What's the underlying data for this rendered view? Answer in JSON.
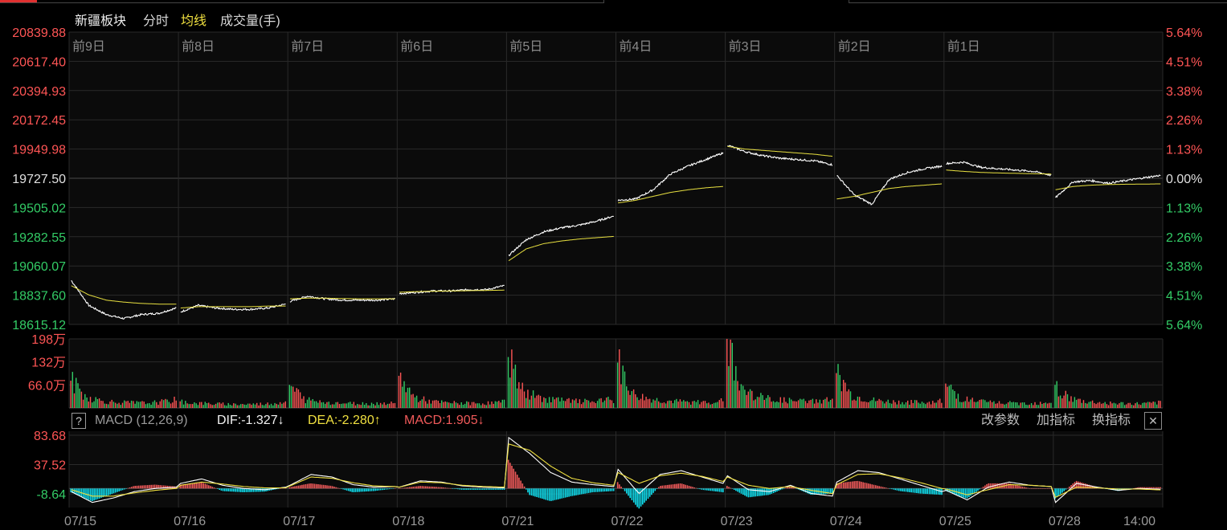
{
  "header": {
    "sector": "新疆板块",
    "tab_intraday": "分时",
    "tab_avg": "均线",
    "tab_volume": "成交量(手)"
  },
  "colors": {
    "up": "#ff5555",
    "down": "#33cc66",
    "neutral": "#e0e0e0",
    "price_line": "#ffffff",
    "avg_line": "#e8e040",
    "dif_line": "#ffffff",
    "dea_line": "#f0e040",
    "macd_pos": "#f05a5a",
    "macd_neg": "#10e0f0",
    "grid": "#2a2a2a",
    "grid_mid": "#484848"
  },
  "macd_header": {
    "help": "?",
    "title": "MACD (12,26,9)",
    "dif": "DIF:-1.327↓",
    "dea": "DEA:-2.280↑",
    "macd": "MACD:1.905↓",
    "btn_params": "改参数",
    "btn_add": "加指标",
    "btn_switch": "换指标",
    "close_icon": "close-icon"
  },
  "chart_data": [
    {
      "type": "line",
      "title": "",
      "day_labels": [
        "前9日",
        "前8日",
        "前7日",
        "前6日",
        "前5日",
        "前4日",
        "前3日",
        "前2日",
        "前1日",
        ""
      ],
      "x": [
        "07/15",
        "07/16",
        "07/17",
        "07/18",
        "07/21",
        "07/22",
        "07/23",
        "07/24",
        "07/25",
        "07/28"
      ],
      "price_ticks_left": [
        "20839.88",
        "20617.40",
        "20394.93",
        "20172.45",
        "19949.98",
        "19727.50",
        "19505.02",
        "19282.55",
        "19060.07",
        "18837.60",
        "18615.12"
      ],
      "pct_ticks_right": [
        "5.64%",
        "4.51%",
        "3.38%",
        "2.26%",
        "1.13%",
        "0.00%",
        "1.13%",
        "2.26%",
        "3.38%",
        "4.51%",
        "5.64%"
      ],
      "ylim": [
        18615.12,
        20839.88
      ],
      "prev_close": 19727.5,
      "series": [
        {
          "values_per_day": [
            [
              18950,
              18760,
              18690,
              18660,
              18690,
              18700,
              18740
            ],
            [
              18710,
              18760,
              18740,
              18730,
              18730,
              18740,
              18770
            ],
            [
              18790,
              18830,
              18810,
              18800,
              18800,
              18800,
              18810
            ],
            [
              18850,
              18860,
              18870,
              18870,
              18880,
              18880,
              18910
            ],
            [
              19140,
              19260,
              19320,
              19350,
              19370,
              19400,
              19440
            ],
            [
              19560,
              19570,
              19640,
              19760,
              19820,
              19870,
              19920
            ],
            [
              19980,
              19930,
              19900,
              19880,
              19870,
              19860,
              19830
            ],
            [
              19750,
              19600,
              19530,
              19720,
              19770,
              19800,
              19820
            ],
            [
              19840,
              19850,
              19810,
              19800,
              19790,
              19780,
              19750
            ],
            [
              19580,
              19700,
              19710,
              19690,
              19710,
              19730,
              19750
            ]
          ]
        },
        {
          "values_per_day": [
            [
              18910,
              18840,
              18800,
              18785,
              18775,
              18770,
              18770
            ],
            [
              18740,
              18750,
              18750,
              18750,
              18750,
              18755,
              18755
            ],
            [
              18810,
              18815,
              18815,
              18812,
              18810,
              18810,
              18810
            ],
            [
              18860,
              18865,
              18868,
              18870,
              18872,
              18874,
              18876
            ],
            [
              19100,
              19190,
              19230,
              19250,
              19265,
              19275,
              19285
            ],
            [
              19540,
              19560,
              19590,
              19620,
              19640,
              19655,
              19665
            ],
            [
              19970,
              19950,
              19940,
              19930,
              19920,
              19910,
              19895
            ],
            [
              19570,
              19590,
              19620,
              19650,
              19665,
              19675,
              19685
            ],
            [
              19790,
              19780,
              19772,
              19768,
              19765,
              19762,
              19760
            ],
            [
              19640,
              19665,
              19675,
              19680,
              19682,
              19683,
              19685
            ]
          ]
        }
      ]
    },
    {
      "type": "bar",
      "title": "",
      "y_ticks": [
        "198万",
        "132万",
        "66.0万"
      ],
      "ylim": [
        0,
        1980000
      ],
      "day_volume": [
        [
          780000,
          320000,
          210000,
          160000,
          150000,
          140000,
          170000,
          230000
        ],
        [
          190000,
          140000,
          120000,
          110000,
          105000,
          110000,
          120000,
          190000
        ],
        [
          660000,
          240000,
          180000,
          150000,
          130000,
          125000,
          130000,
          160000
        ],
        [
          920000,
          310000,
          190000,
          150000,
          140000,
          130000,
          140000,
          170000
        ],
        [
          1460000,
          460000,
          300000,
          240000,
          200000,
          180000,
          190000,
          240000
        ],
        [
          1300000,
          400000,
          260000,
          210000,
          180000,
          160000,
          170000,
          210000
        ],
        [
          1980000,
          520000,
          320000,
          250000,
          210000,
          190000,
          200000,
          250000
        ],
        [
          1000000,
          360000,
          240000,
          190000,
          170000,
          160000,
          160000,
          200000
        ],
        [
          700000,
          280000,
          200000,
          160000,
          140000,
          130000,
          140000,
          180000
        ],
        [
          660000,
          260000,
          180000,
          150000,
          130000,
          120000,
          120000,
          150000
        ]
      ]
    },
    {
      "type": "line",
      "title": "",
      "name": "MACD (12,26,9)",
      "y_ticks": [
        "83.68",
        "37.52",
        "-8.64"
      ],
      "ylim": [
        -30,
        90
      ],
      "x_ticks": [
        "07/15",
        "07/16",
        "07/17",
        "07/18",
        "07/21",
        "07/22",
        "07/23",
        "07/24",
        "07/25",
        "07/28",
        "14:00"
      ],
      "series": [
        {
          "name": "DIF",
          "values_per_day": [
            [
              -5,
              -22,
              -15,
              -5,
              0,
              2
            ],
            [
              8,
              15,
              5,
              0,
              -2,
              2
            ],
            [
              5,
              22,
              18,
              6,
              2,
              3
            ],
            [
              2,
              12,
              10,
              4,
              2,
              1
            ],
            [
              80,
              55,
              25,
              10,
              6,
              3
            ],
            [
              30,
              -8,
              22,
              28,
              18,
              8
            ],
            [
              20,
              -2,
              -5,
              5,
              -8,
              -12
            ],
            [
              10,
              28,
              25,
              15,
              5,
              -5
            ],
            [
              -3,
              -18,
              2,
              10,
              5,
              3
            ],
            [
              -22,
              8,
              2,
              -3,
              0,
              -1.327
            ]
          ]
        },
        {
          "name": "DEA",
          "values_per_day": [
            [
              -2,
              -12,
              -12,
              -7,
              -3,
              0
            ],
            [
              5,
              10,
              7,
              3,
              1,
              1
            ],
            [
              4,
              18,
              16,
              9,
              4,
              3
            ],
            [
              2,
              10,
              9,
              5,
              3,
              2
            ],
            [
              70,
              60,
              35,
              16,
              9,
              5
            ],
            [
              25,
              8,
              20,
              24,
              19,
              11
            ],
            [
              18,
              5,
              0,
              3,
              -3,
              -8
            ],
            [
              6,
              22,
              23,
              17,
              9,
              0
            ],
            [
              -1,
              -10,
              -2,
              6,
              5,
              3
            ],
            [
              -14,
              2,
              1,
              -1,
              -1,
              -2.28
            ]
          ]
        },
        {
          "name": "MACD",
          "values_per_day": [
            [
              -6,
              -20,
              -8,
              4,
              6,
              3
            ],
            [
              6,
              10,
              -4,
              -6,
              -5,
              2
            ],
            [
              2,
              8,
              4,
              -6,
              -4,
              0
            ],
            [
              0,
              4,
              2,
              -2,
              -2,
              -2
            ],
            [
              45,
              -10,
              -20,
              -12,
              -6,
              -4
            ],
            [
              10,
              -32,
              4,
              8,
              -2,
              -6
            ],
            [
              4,
              -14,
              -10,
              4,
              -10,
              -8
            ],
            [
              8,
              12,
              4,
              -4,
              -8,
              -10
            ],
            [
              -4,
              -16,
              8,
              8,
              0,
              0
            ],
            [
              -16,
              12,
              2,
              -4,
              2,
              1.905
            ]
          ]
        }
      ]
    }
  ]
}
